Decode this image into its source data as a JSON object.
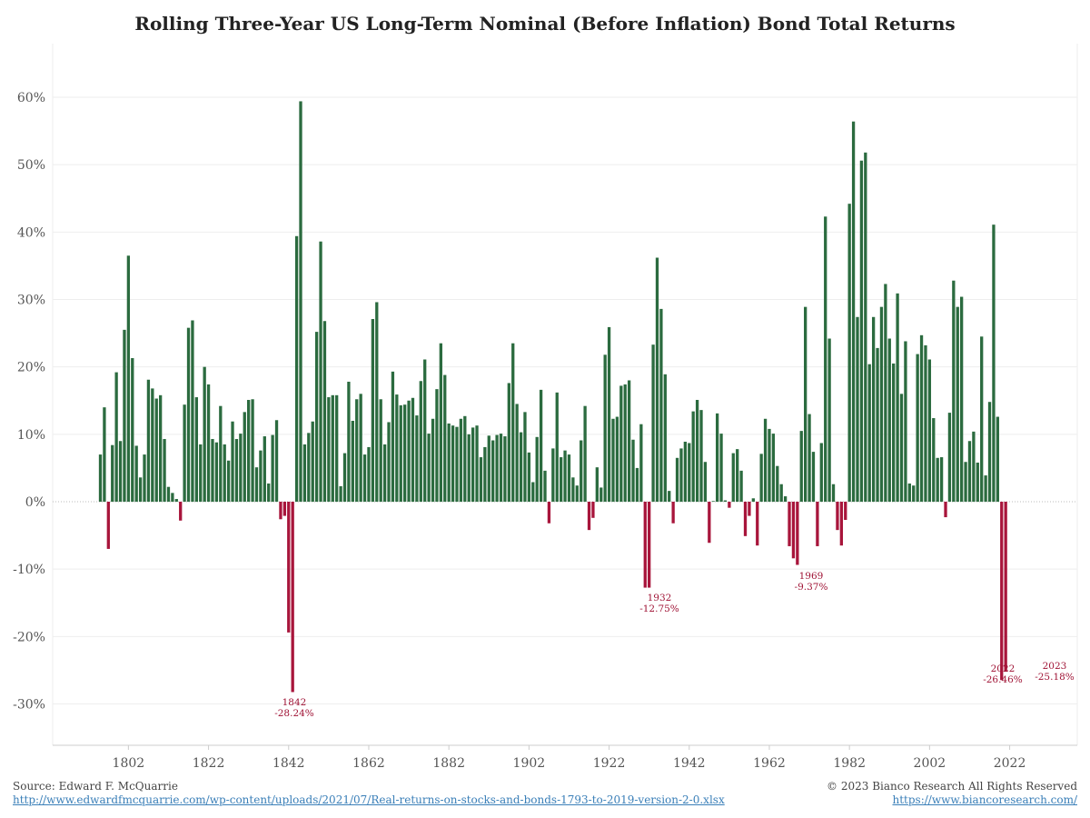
{
  "title": "Rolling Three-Year US Long-Term Nominal (Before Inflation) Bond Total Returns",
  "footer": {
    "source": "Source: Edward F. McQuarrie",
    "source_url": "http://www.edwardfmcquarrie.com/wp-content/uploads/2021/07/Real-returns-on-stocks-and-bonds-1793-to-2019-version-2-0.xlsx",
    "copyright": "© 2023 Bianco Research All Rights Reserved",
    "site_url": "https://www.biancoresearch.com/"
  },
  "colors": {
    "positive": "#2b6b3f",
    "negative": "#a8153b",
    "grid": "#eeeeee"
  },
  "chart_data": {
    "type": "bar",
    "x_start": 1795,
    "x_end": 2023,
    "x_ticks": [
      1802,
      1822,
      1842,
      1862,
      1882,
      1902,
      1922,
      1942,
      1962,
      1982,
      2002,
      2022
    ],
    "y_ticks": [
      -30,
      -20,
      -10,
      0,
      10,
      20,
      30,
      40,
      50,
      60
    ],
    "y_tick_format": "percent",
    "ylim": [
      -36,
      66
    ],
    "values": [
      7,
      14,
      -7,
      8.4,
      19.2,
      9,
      25.5,
      36.5,
      21.3,
      8.3,
      3.6,
      7,
      18.1,
      16.8,
      15.3,
      15.8,
      9.3,
      2.2,
      1.3,
      0.4,
      -2.8,
      14.4,
      25.8,
      26.9,
      15.5,
      8.5,
      20,
      17.4,
      9.3,
      8.8,
      14.2,
      8.5,
      6.1,
      11.9,
      9.3,
      10.1,
      13.3,
      15.1,
      15.2,
      5.1,
      7.6,
      9.7,
      2.7,
      9.9,
      12.1,
      -2.6,
      -2.1,
      -19.4,
      -28.24,
      39.4,
      59.4,
      8.5,
      10.2,
      11.9,
      25.2,
      38.6,
      26.8,
      15.5,
      15.8,
      15.8,
      2.3,
      7.2,
      17.8,
      12,
      15.2,
      16,
      7,
      8.1,
      27.1,
      29.6,
      15.2,
      8.5,
      11.8,
      19.3,
      15.9,
      14.3,
      14.4,
      15,
      15.4,
      12.8,
      17.9,
      21.1,
      10.1,
      12.3,
      16.7,
      23.5,
      18.8,
      11.6,
      11.3,
      11.1,
      12.3,
      12.7,
      10,
      11,
      11.3,
      6.6,
      8.1,
      9.8,
      9.1,
      9.9,
      10.1,
      9.7,
      17.6,
      23.5,
      14.5,
      10.3,
      13.3,
      7.3,
      2.9,
      9.6,
      16.6,
      4.6,
      -3.2,
      7.9,
      16.2,
      6.6,
      7.6,
      7,
      3.6,
      2.4,
      9.1,
      14.2,
      -4.2,
      -2.4,
      5.1,
      2.1,
      21.8,
      25.9,
      12.3,
      12.6,
      17.2,
      17.4,
      18,
      9.2,
      5,
      11.5,
      -12.75,
      -12.75,
      23.3,
      36.2,
      28.6,
      18.9,
      1.6,
      -3.2,
      6.5,
      7.9,
      8.9,
      8.7,
      13.4,
      15.1,
      13.6,
      5.9,
      -6.1,
      0.1,
      13.1,
      10.1,
      0.2,
      -0.9,
      7.2,
      7.8,
      4.6,
      -5.1,
      -2.1,
      0.5,
      -6.5,
      7.1,
      12.3,
      10.8,
      10.1,
      5.3,
      2.6,
      0.8,
      -6.6,
      -8.4,
      -9.37,
      10.5,
      28.9,
      13,
      7.4,
      -6.6,
      8.7,
      42.3,
      24.2,
      2.6,
      -4.2,
      -6.5,
      -2.7,
      44.2,
      56.4,
      27.4,
      50.6,
      51.8,
      20.4,
      27.4,
      22.8,
      28.9,
      32.3,
      24.2,
      20.5,
      30.9,
      16,
      23.8,
      2.7,
      2.4,
      21.9,
      24.7,
      23.2,
      21.1,
      12.4,
      6.5,
      6.6,
      -2.3,
      13.2,
      32.8,
      28.9,
      30.4,
      5.9,
      9,
      10.4,
      5.8,
      24.5,
      3.9,
      14.8,
      41.1,
      12.6,
      -26.46,
      -25.18
    ],
    "annotations": [
      {
        "year": "1842",
        "value": "-28.24%"
      },
      {
        "year": "1932",
        "value": "-12.75%"
      },
      {
        "year": "1969",
        "value": "-9.37%"
      },
      {
        "year": "2022",
        "value": "-26.46%"
      },
      {
        "year": "2023",
        "value": "-25.18%"
      }
    ]
  }
}
